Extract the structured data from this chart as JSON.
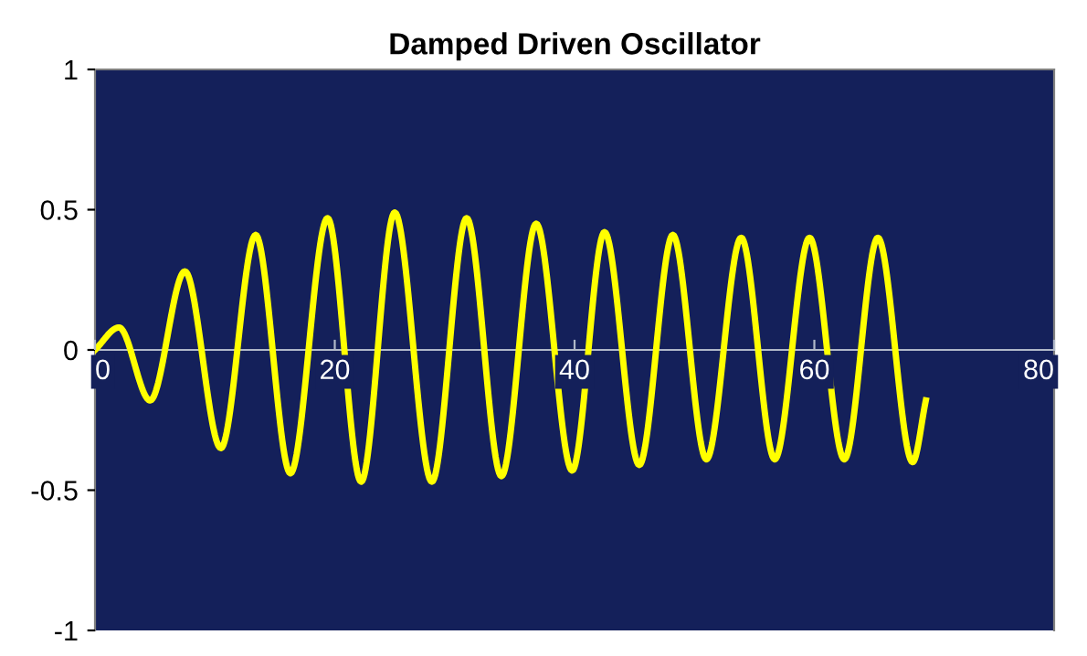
{
  "chart_data": {
    "type": "line",
    "title": "Damped Driven Oscillator",
    "series": [
      {
        "color": "#ffff00",
        "x": [
          0,
          2.0,
          4.6,
          7.5,
          10.5,
          13.4,
          16.3,
          19.4,
          22.2,
          25.0,
          28.1,
          31.0,
          33.9,
          36.8,
          39.8,
          42.5,
          45.4,
          48.2,
          51.0,
          53.9,
          56.7,
          59.6,
          62.5,
          65.3,
          68.2,
          69.3
        ],
        "values": [
          0,
          0.08,
          -0.18,
          0.28,
          -0.35,
          0.41,
          -0.44,
          0.47,
          -0.47,
          0.49,
          -0.47,
          0.47,
          -0.45,
          0.45,
          -0.43,
          0.42,
          -0.41,
          0.41,
          -0.39,
          0.4,
          -0.39,
          0.4,
          -0.39,
          0.4,
          -0.4,
          -0.18
        ]
      }
    ],
    "xlim": [
      0,
      80
    ],
    "xticks": [
      0,
      20,
      40,
      60,
      80
    ],
    "ylim": [
      -1,
      1
    ],
    "yticks": [
      -1,
      -0.5,
      0,
      0.5,
      1
    ],
    "grid": false,
    "legend": false,
    "marker": "none",
    "line_style": "solid"
  }
}
